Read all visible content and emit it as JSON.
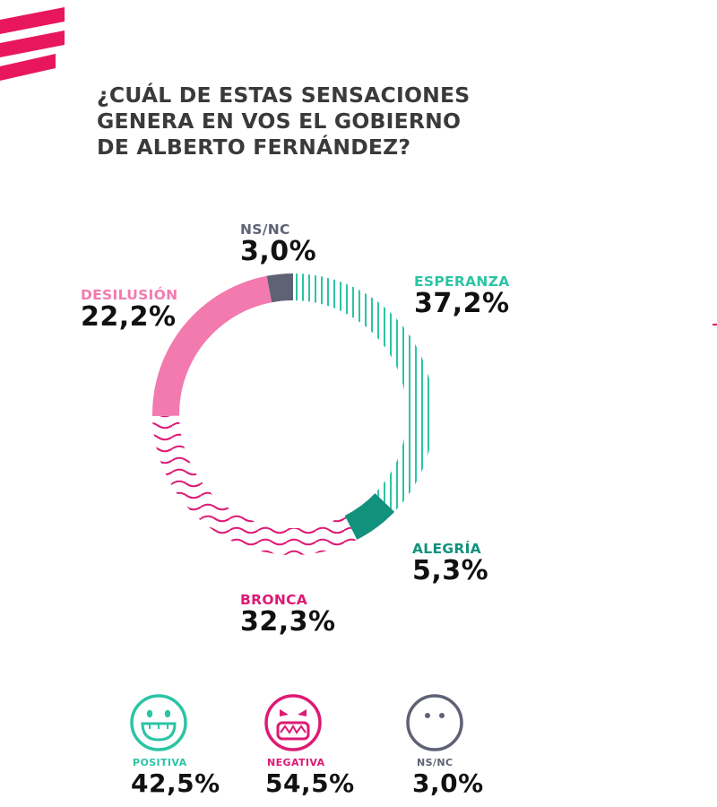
{
  "title": {
    "line1": "¿CUÁL DE ESTAS SENSACIONES",
    "line2": "GENERA EN VOS EL GOBIERNO",
    "line3": "DE ALBERTO FERNÁNDEZ?"
  },
  "colors": {
    "esperanza": "#2bc4a4",
    "alegria": "#12917d",
    "bronca": "#dd1a74",
    "desilusion": "#f27aae",
    "nsnc": "#5f6275",
    "brand": "#e8175d"
  },
  "chart_data": {
    "type": "pie",
    "variant": "donut",
    "title": "¿CUÁL DE ESTAS SENSACIONES GENERA EN VOS EL GOBIERNO DE ALBERTO FERNÁNDEZ?",
    "slices": [
      {
        "key": "esperanza",
        "label": "ESPERANZA",
        "value": 37.2,
        "value_text": "37,2%",
        "pattern": "vertical-stripes"
      },
      {
        "key": "alegria",
        "label": "ALEGRÍA",
        "value": 5.3,
        "value_text": "5,3%",
        "pattern": "solid"
      },
      {
        "key": "bronca",
        "label": "BRONCA",
        "value": 32.3,
        "value_text": "32,3%",
        "pattern": "waves"
      },
      {
        "key": "desilusion",
        "label": "DESILUSIÓN",
        "value": 22.2,
        "value_text": "22,2%",
        "pattern": "solid"
      },
      {
        "key": "nsnc",
        "label": "NS/NC",
        "value": 3.0,
        "value_text": "3,0%",
        "pattern": "solid"
      }
    ]
  },
  "summary": [
    {
      "key": "positiva",
      "label": "POSITIVA",
      "value": 42.5,
      "value_text": "42,5%",
      "icon": "happy-face-icon"
    },
    {
      "key": "negativa",
      "label": "NEGATIVA",
      "value": 54.5,
      "value_text": "54,5%",
      "icon": "angry-face-icon"
    },
    {
      "key": "nsnc",
      "label": "NS/NC",
      "value": 3.0,
      "value_text": "3,0%",
      "icon": "neutral-face-icon"
    }
  ]
}
